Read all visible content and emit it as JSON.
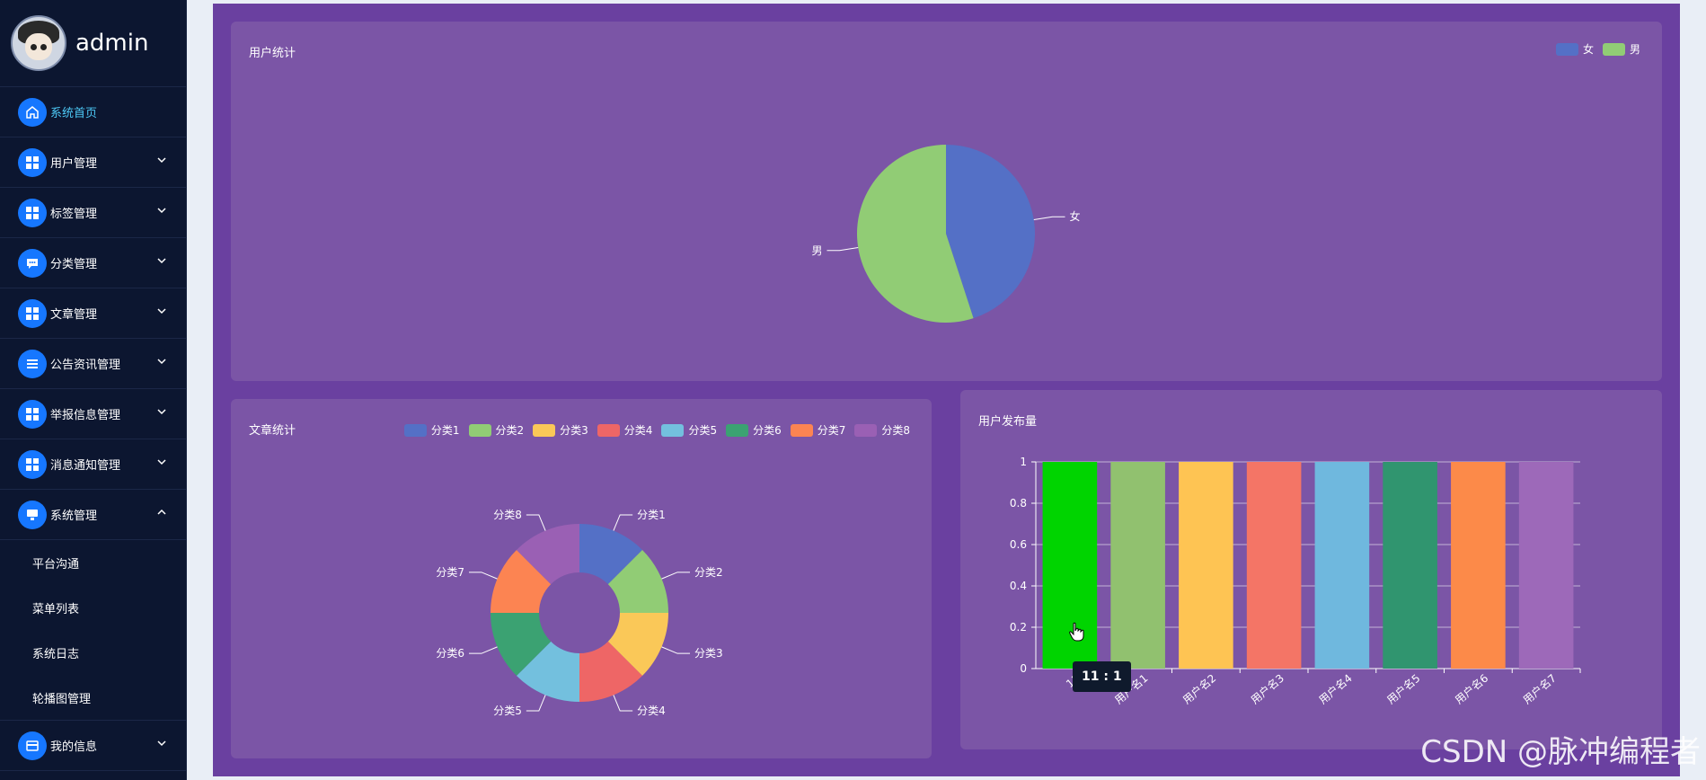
{
  "sidebar": {
    "username": "admin",
    "menu": [
      {
        "label": "系统首页",
        "icon": "home-icon",
        "active": true,
        "has_children": false
      },
      {
        "label": "用户管理",
        "icon": "grid-icon",
        "has_children": true
      },
      {
        "label": "标签管理",
        "icon": "grid-icon",
        "has_children": true
      },
      {
        "label": "分类管理",
        "icon": "message-icon",
        "has_children": true
      },
      {
        "label": "文章管理",
        "icon": "grid-icon",
        "has_children": true
      },
      {
        "label": "公告资讯管理",
        "icon": "list-icon",
        "has_children": true
      },
      {
        "label": "举报信息管理",
        "icon": "grid-icon",
        "has_children": true
      },
      {
        "label": "消息通知管理",
        "icon": "grid-icon",
        "has_children": true
      },
      {
        "label": "系统管理",
        "icon": "monitor-icon",
        "has_children": true,
        "expanded": true
      }
    ],
    "submenu": [
      "平台沟通",
      "菜单列表",
      "系统日志",
      "轮播图管理"
    ],
    "last_menu": {
      "label": "我的信息",
      "icon": "card-icon",
      "has_children": true
    }
  },
  "panels": {
    "user_stats_title": "用户统计",
    "article_stats_title": "文章统计",
    "user_posts_title": "用户发布量"
  },
  "tooltip": "11 : 1",
  "watermark": "CSDN @脉冲编程者",
  "chart_data": [
    {
      "type": "pie",
      "title": "用户统计",
      "categories": [
        "女",
        "男"
      ],
      "values": [
        45,
        55
      ],
      "colors": [
        "#5470c6",
        "#91cc75"
      ],
      "legend": "top-right"
    },
    {
      "type": "pie",
      "title": "文章统计",
      "donut": true,
      "categories": [
        "分类1",
        "分类2",
        "分类3",
        "分类4",
        "分类5",
        "分类6",
        "分类7",
        "分类8"
      ],
      "values": [
        1,
        1,
        1,
        1,
        1,
        1,
        1,
        1
      ],
      "colors": [
        "#5470c6",
        "#91cc75",
        "#fac858",
        "#ee6666",
        "#73c0de",
        "#3ba272",
        "#fc8452",
        "#9a60b4"
      ],
      "legend": "top"
    },
    {
      "type": "bar",
      "title": "用户发布量",
      "categories": [
        "11",
        "用户名1",
        "用户名2",
        "用户名3",
        "用户名4",
        "用户名5",
        "用户名6",
        "用户名7"
      ],
      "values": [
        1,
        1,
        1,
        1,
        1,
        1,
        1,
        1
      ],
      "colors": [
        "#00d400",
        "#91c16f",
        "#fec453",
        "#f47566",
        "#6fb8de",
        "#30956f",
        "#fc8a49",
        "#9d69b9"
      ],
      "ylim": [
        0,
        1
      ],
      "yticks": [
        "0",
        "0.2",
        "0.4",
        "0.6",
        "0.8",
        "1"
      ],
      "grid": true
    }
  ]
}
